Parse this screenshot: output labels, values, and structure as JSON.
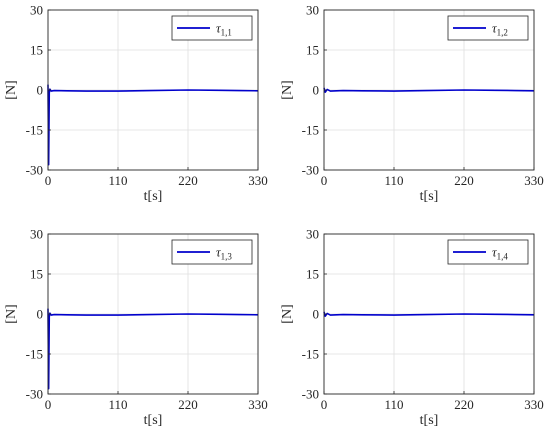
{
  "chart_data": [
    {
      "type": "line",
      "xlabel": "t[s]",
      "ylabel": "[N]",
      "xticks": [
        "0",
        "110",
        "220",
        "330"
      ],
      "yticks": [
        "30",
        "15",
        "0",
        "-15",
        "-30"
      ],
      "xlim": [
        0,
        330
      ],
      "ylim": [
        -30,
        30
      ],
      "grid": true,
      "legend_position": "top-right",
      "legend": {
        "symbol": "τ",
        "subscript": "1,1"
      },
      "series": [
        {
          "name": "τ1,1",
          "color": "#0000cc",
          "x": [
            0,
            1,
            2,
            3,
            5,
            10,
            30,
            60,
            110,
            160,
            220,
            270,
            300,
            330
          ],
          "y": [
            2,
            -28,
            -1,
            0.3,
            -0.4,
            -0.2,
            -0.3,
            -0.4,
            -0.4,
            -0.2,
            0.0,
            -0.1,
            -0.2,
            -0.3
          ]
        }
      ]
    },
    {
      "type": "line",
      "xlabel": "t[s]",
      "ylabel": "[N]",
      "xticks": [
        "0",
        "110",
        "220",
        "330"
      ],
      "yticks": [
        "30",
        "15",
        "0",
        "-15",
        "-30"
      ],
      "xlim": [
        0,
        330
      ],
      "ylim": [
        -30,
        30
      ],
      "grid": true,
      "legend_position": "top-right",
      "legend": {
        "symbol": "τ",
        "subscript": "1,2"
      },
      "series": [
        {
          "name": "τ1,2",
          "color": "#0000cc",
          "x": [
            0,
            2,
            5,
            10,
            30,
            60,
            110,
            160,
            220,
            270,
            300,
            330
          ],
          "y": [
            0.8,
            -0.8,
            0.2,
            -0.4,
            -0.2,
            -0.3,
            -0.4,
            -0.2,
            0.0,
            -0.1,
            -0.2,
            -0.3
          ]
        }
      ]
    },
    {
      "type": "line",
      "xlabel": "t[s]",
      "ylabel": "[N]",
      "xticks": [
        "0",
        "110",
        "220",
        "330"
      ],
      "yticks": [
        "30",
        "15",
        "0",
        "-15",
        "-30"
      ],
      "xlim": [
        0,
        330
      ],
      "ylim": [
        -30,
        30
      ],
      "grid": true,
      "legend_position": "top-right",
      "legend": {
        "symbol": "τ",
        "subscript": "1,3"
      },
      "series": [
        {
          "name": "τ1,3",
          "color": "#0000cc",
          "x": [
            0,
            1,
            2,
            3,
            5,
            10,
            30,
            60,
            110,
            160,
            220,
            270,
            300,
            330
          ],
          "y": [
            2,
            -28,
            -1,
            0.3,
            -0.4,
            -0.2,
            -0.3,
            -0.4,
            -0.4,
            -0.2,
            0.0,
            -0.1,
            -0.2,
            -0.3
          ]
        }
      ]
    },
    {
      "type": "line",
      "xlabel": "t[s]",
      "ylabel": "[N]",
      "xticks": [
        "0",
        "110",
        "220",
        "330"
      ],
      "yticks": [
        "30",
        "15",
        "0",
        "-15",
        "-30"
      ],
      "xlim": [
        0,
        330
      ],
      "ylim": [
        -30,
        30
      ],
      "grid": true,
      "legend_position": "top-right",
      "legend": {
        "symbol": "τ",
        "subscript": "1,4"
      },
      "series": [
        {
          "name": "τ1,4",
          "color": "#0000cc",
          "x": [
            0,
            2,
            5,
            10,
            30,
            60,
            110,
            160,
            220,
            270,
            300,
            330
          ],
          "y": [
            0.8,
            -0.8,
            0.2,
            -0.4,
            -0.2,
            -0.3,
            -0.4,
            -0.2,
            0.0,
            -0.1,
            -0.2,
            -0.3
          ]
        }
      ]
    }
  ]
}
